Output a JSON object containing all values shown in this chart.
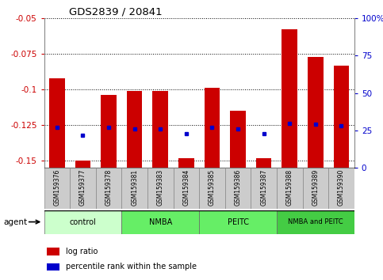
{
  "title": "GDS2839 / 20841",
  "samples": [
    "GSM159376",
    "GSM159377",
    "GSM159378",
    "GSM159381",
    "GSM159383",
    "GSM159384",
    "GSM159385",
    "GSM159386",
    "GSM159387",
    "GSM159388",
    "GSM159389",
    "GSM159390"
  ],
  "log_ratio": [
    -0.092,
    -0.15,
    -0.104,
    -0.101,
    -0.101,
    -0.148,
    -0.099,
    -0.115,
    -0.148,
    -0.058,
    -0.077,
    -0.083
  ],
  "percentile_rank": [
    27,
    22,
    27,
    26,
    26,
    23,
    27,
    26,
    23,
    30,
    29,
    28
  ],
  "ylim_left": [
    -0.155,
    -0.05
  ],
  "ylim_right": [
    0,
    100
  ],
  "yticks_left": [
    -0.15,
    -0.125,
    -0.1,
    -0.075,
    -0.05
  ],
  "yticks_right": [
    0,
    25,
    50,
    75,
    100
  ],
  "groups": [
    {
      "label": "control",
      "start": 0,
      "end": 2,
      "color": "#ccffcc"
    },
    {
      "label": "NMBA",
      "start": 3,
      "end": 5,
      "color": "#66ee66"
    },
    {
      "label": "PEITC",
      "start": 6,
      "end": 8,
      "color": "#66ee66"
    },
    {
      "label": "NMBA and PEITC",
      "start": 9,
      "end": 11,
      "color": "#44cc44"
    }
  ],
  "bar_color": "#cc0000",
  "dot_color": "#0000cc",
  "bar_width": 0.6,
  "left_axis_color": "#cc0000",
  "right_axis_color": "#0000cc",
  "agent_label": "agent",
  "legend_bar_label": "log ratio",
  "legend_dot_label": "percentile rank within the sample",
  "sample_box_color": "#cccccc",
  "sample_box_edge": "#888888"
}
